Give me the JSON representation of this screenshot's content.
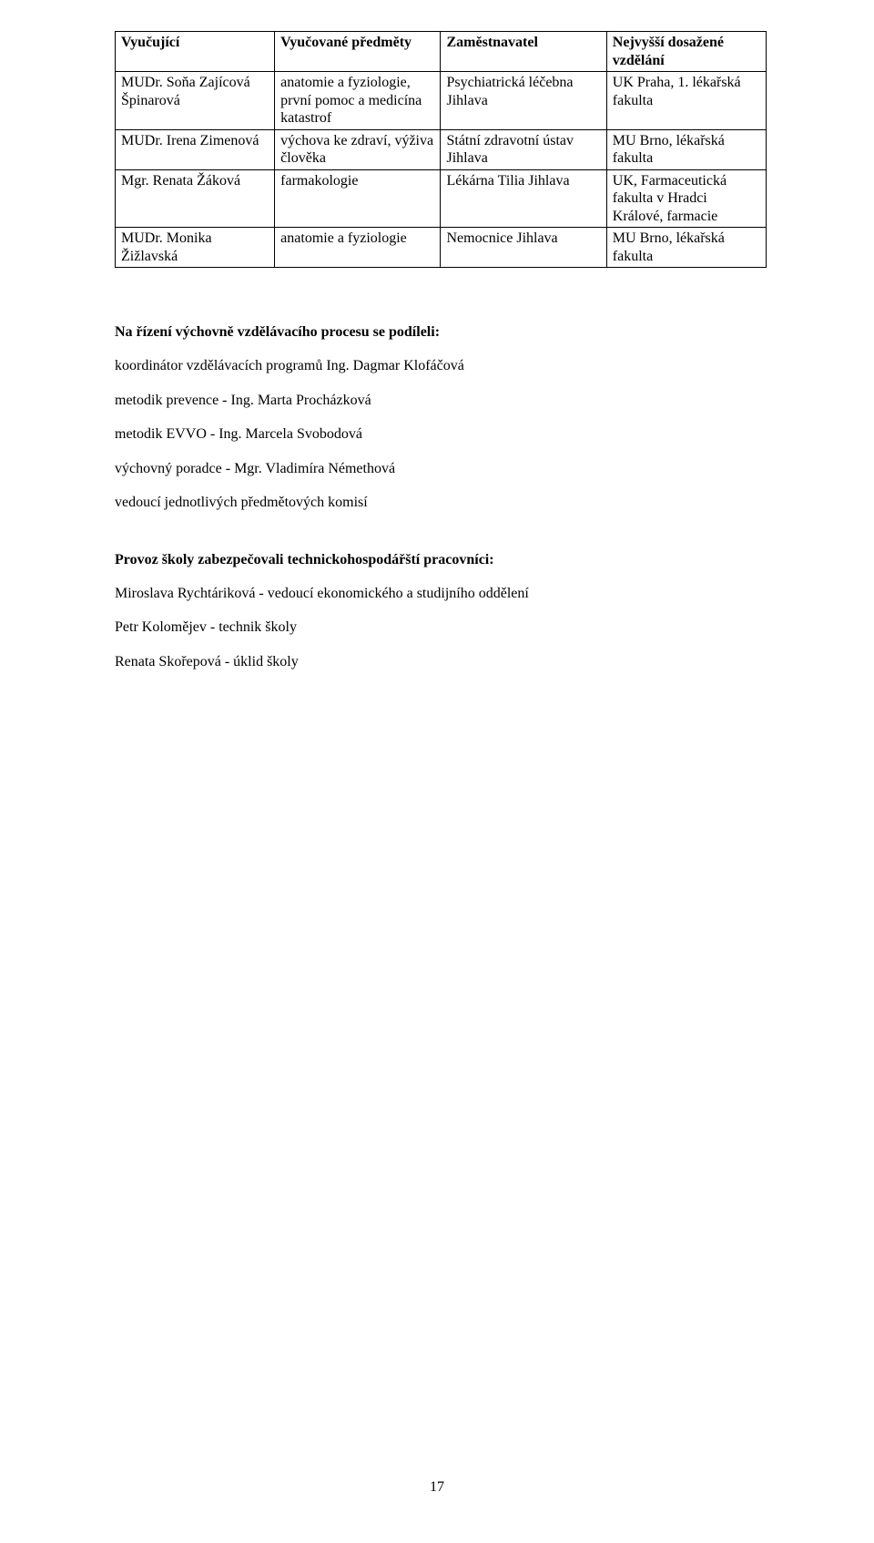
{
  "table": {
    "headers": {
      "c1": "Vyučující",
      "c2": "Vyučované předměty",
      "c3": "Zaměstnavatel",
      "c4": "Nejvyšší dosažené vzdělání"
    },
    "rows": [
      {
        "c1": "MUDr. Soňa Zajícová Špinarová",
        "c2": "anatomie a fyziologie, první pomoc a medicína katastrof",
        "c3": "Psychiatrická léčebna Jihlava",
        "c4": "UK Praha, 1. lékařská fakulta"
      },
      {
        "c1": "MUDr. Irena Zimenová",
        "c2": "výchova ke zdraví, výživa člověka",
        "c3": "Státní zdravotní ústav Jihlava",
        "c4": "MU Brno, lékařská fakulta"
      },
      {
        "c1": "Mgr. Renata Žáková",
        "c2": "farmakologie",
        "c3": "Lékárna Tilia Jihlava",
        "c4": "UK, Farmaceutická fakulta v Hradci Králové, farmacie"
      },
      {
        "c1": "MUDr. Monika Žižlavská",
        "c2": "anatomie a fyziologie",
        "c3": "Nemocnice Jihlava",
        "c4": "MU Brno, lékařská fakulta"
      }
    ]
  },
  "section1": {
    "heading": "Na řízení výchovně vzdělávacího procesu se podíleli:",
    "lines": [
      "koordinátor vzdělávacích programů Ing. Dagmar Klofáčová",
      "metodik prevence - Ing. Marta Procházková",
      "metodik EVVO - Ing. Marcela Svobodová",
      "výchovný poradce - Mgr. Vladimíra Némethová",
      "vedoucí jednotlivých předmětových komisí"
    ]
  },
  "section2": {
    "heading": "Provoz školy zabezpečovali technickohospodářští pracovníci:",
    "lines": [
      "Miroslava Rychtáriková - vedoucí ekonomického a studijního oddělení",
      "Petr Kolomějev - technik školy",
      "Renata Skořepová - úklid školy"
    ]
  },
  "pageNumber": "17"
}
